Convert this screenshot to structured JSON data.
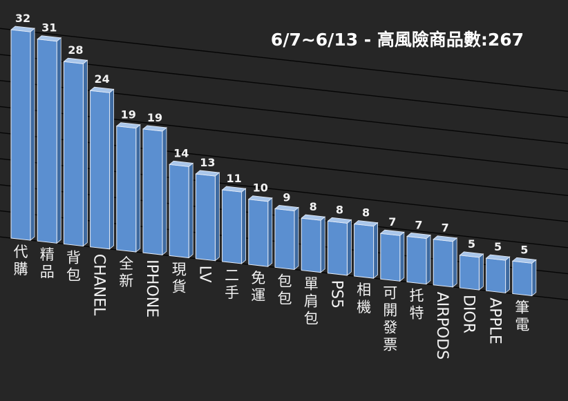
{
  "chart_data": {
    "type": "bar",
    "title": "6/7~6/13 - 高風險商品數:267",
    "categories": [
      "代購",
      "精品",
      "背包",
      "CHANEL",
      "全新",
      "IPHONE",
      "現貨",
      "LV",
      "二手",
      "免運",
      "包包",
      "單肩包",
      "PS5",
      "相機",
      "可開發票",
      "托特",
      "AIRPODS",
      "DIOR",
      "APPLE",
      "筆電"
    ],
    "values": [
      32,
      31,
      28,
      24,
      19,
      19,
      14,
      13,
      11,
      10,
      9,
      8,
      8,
      8,
      7,
      7,
      7,
      5,
      5,
      5
    ],
    "ylim": [
      0,
      32
    ],
    "grid": true,
    "legend": "none"
  },
  "colors": {
    "background": "#262626",
    "bar_front": "#5b8fd0",
    "bar_top": "#a9c6ea",
    "bar_side": "#3e6aa0",
    "bar_outline": "#e8eef8",
    "text": "#f2f2f2",
    "grid": "#050505"
  }
}
